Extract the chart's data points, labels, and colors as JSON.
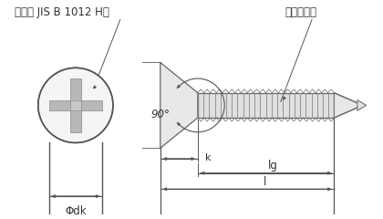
{
  "title_left": "十字穴 JIS B 1012 H形",
  "title_right": "ねじの呼び",
  "label_dk": "Φdk",
  "label_k": "k",
  "label_lg": "lg",
  "label_l": "l",
  "label_angle": "90°",
  "bg_color": "#ffffff",
  "line_color": "#555555",
  "screw_fill": "#e0e0e0",
  "screw_edge": "#666666",
  "text_color": "#333333",
  "circle_fill": "#f5f5f5",
  "thread_color": "#888888"
}
